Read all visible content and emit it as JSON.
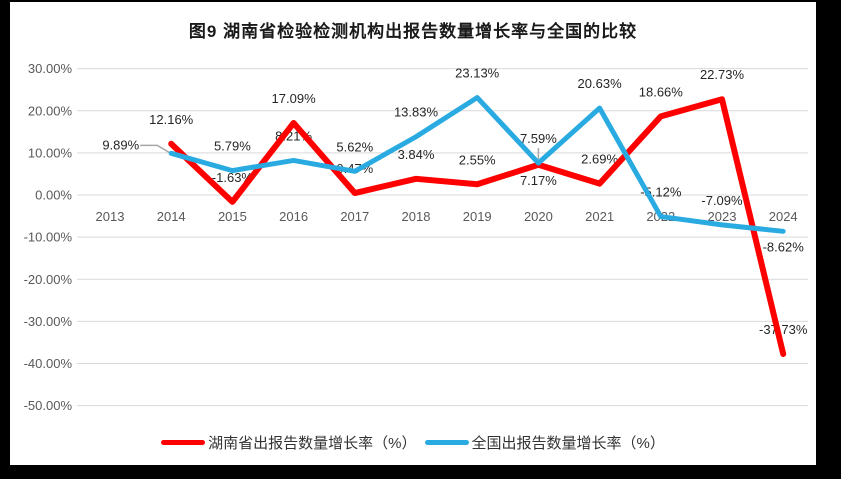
{
  "frame": {
    "border_color": "#000000",
    "chart_background": "#ffffff"
  },
  "chart_data": {
    "type": "line",
    "title": "图9 湖南省检验检测机构出报告数量增长率与全国的比较",
    "categories": [
      "2013",
      "2014",
      "2015",
      "2016",
      "2017",
      "2018",
      "2019",
      "2020",
      "2021",
      "2022",
      "2023",
      "2024"
    ],
    "y_axis": {
      "min": -50,
      "max": 30,
      "step": 10,
      "tick_labels": [
        "30.00%",
        "20.00%",
        "10.00%",
        "0.00%",
        "-10.00%",
        "-20.00%",
        "-30.00%",
        "-40.00%",
        "-50.00%"
      ]
    },
    "grid": true,
    "legend_position": "bottom",
    "colors": {
      "grid": "#d9d9d9",
      "axis_text": "#595959",
      "label_text": "#262626",
      "leader": "#a6a6a6"
    },
    "series": [
      {
        "name": "湖南省出报告数量增长率（%）",
        "color": "#ff0000",
        "values": [
          null,
          12.16,
          -1.63,
          17.09,
          0.47,
          3.84,
          2.55,
          7.17,
          2.69,
          18.66,
          22.73,
          -37.73
        ],
        "labels": [
          "",
          "12.16%",
          "-1.63%",
          "17.09%",
          "0.47%",
          "3.84%",
          "2.55%",
          "7.17%",
          "2.69%",
          "18.66%",
          "22.73%",
          "-37.73%"
        ],
        "label_pos": [
          "",
          "above",
          "above",
          "above",
          "above",
          "above",
          "above",
          "below",
          "above",
          "above",
          "above",
          "above"
        ]
      },
      {
        "name": "全国出报告数量增长率（%）",
        "color": "#29abe2",
        "values": [
          null,
          9.89,
          5.79,
          8.21,
          5.62,
          13.83,
          23.13,
          7.59,
          20.63,
          -5.12,
          -7.09,
          -8.62
        ],
        "labels": [
          "",
          "9.89%",
          "5.79%",
          "8.21%",
          "5.62%",
          "13.83%",
          "23.13%",
          "7.59%",
          "20.63%",
          "-5.12%",
          "-7.09%",
          "-8.62%"
        ],
        "label_pos": [
          "",
          "leader-left",
          "above",
          "above",
          "above",
          "above",
          "above",
          "above-leader",
          "above",
          "above",
          "above",
          "below"
        ]
      }
    ]
  }
}
